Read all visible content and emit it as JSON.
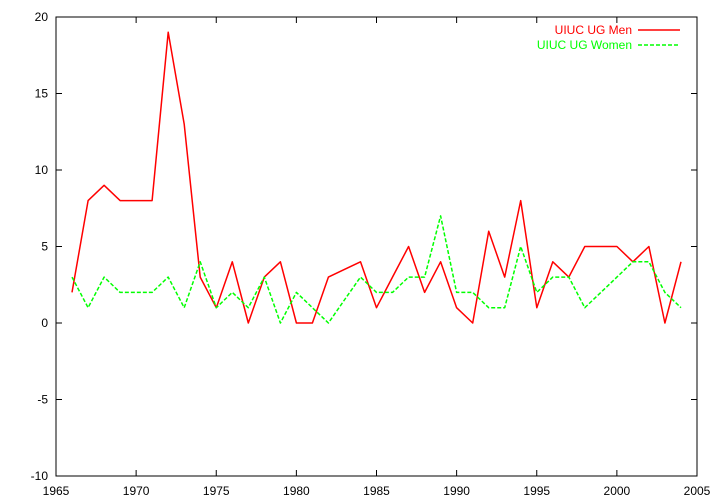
{
  "chart_data": {
    "type": "line",
    "title": "",
    "xlabel": "",
    "ylabel": "",
    "xlim": [
      1965,
      2005
    ],
    "ylim": [
      -10,
      20
    ],
    "xticks": [
      1965,
      1970,
      1975,
      1980,
      1985,
      1990,
      1995,
      2000,
      2005
    ],
    "yticks": [
      -10,
      -5,
      0,
      5,
      10,
      15,
      20
    ],
    "grid": false,
    "legend_position": "top-right",
    "series": [
      {
        "name": "UIUC UG Men",
        "color": "#ff0000",
        "dash": "solid",
        "x": [
          1966,
          1967,
          1968,
          1969,
          1970,
          1971,
          1972,
          1973,
          1974,
          1975,
          1976,
          1977,
          1978,
          1979,
          1980,
          1981,
          1982,
          1983,
          1984,
          1985,
          1986,
          1987,
          1988,
          1989,
          1990,
          1991,
          1992,
          1993,
          1994,
          1995,
          1996,
          1997,
          1998,
          1999,
          2000,
          2001,
          2002,
          2003,
          2004
        ],
        "y": [
          2,
          8,
          9,
          8,
          8,
          8,
          19,
          13,
          3,
          1,
          4,
          0,
          3,
          4,
          0,
          0,
          3,
          3.5,
          4,
          1,
          3,
          5,
          2,
          4,
          1,
          0,
          6,
          3,
          8,
          1,
          4,
          3,
          5,
          5,
          5,
          4,
          5,
          0,
          4
        ]
      },
      {
        "name": "UIUC UG Women",
        "color": "#00ff00",
        "dash": "dashed",
        "x": [
          1966,
          1967,
          1968,
          1969,
          1970,
          1971,
          1972,
          1973,
          1974,
          1975,
          1976,
          1977,
          1978,
          1979,
          1980,
          1981,
          1982,
          1983,
          1984,
          1985,
          1986,
          1987,
          1988,
          1989,
          1990,
          1991,
          1992,
          1993,
          1994,
          1995,
          1996,
          1997,
          1998,
          1999,
          2000,
          2001,
          2002,
          2003,
          2004
        ],
        "y": [
          3,
          1,
          3,
          2,
          2,
          2,
          3,
          1,
          4,
          1,
          2,
          1,
          3,
          0,
          2,
          1,
          0,
          1.5,
          3,
          2,
          2,
          3,
          3,
          7,
          2,
          2,
          1,
          1,
          5,
          2,
          3,
          3,
          1,
          2,
          3,
          4,
          4,
          2,
          1
        ]
      }
    ]
  }
}
